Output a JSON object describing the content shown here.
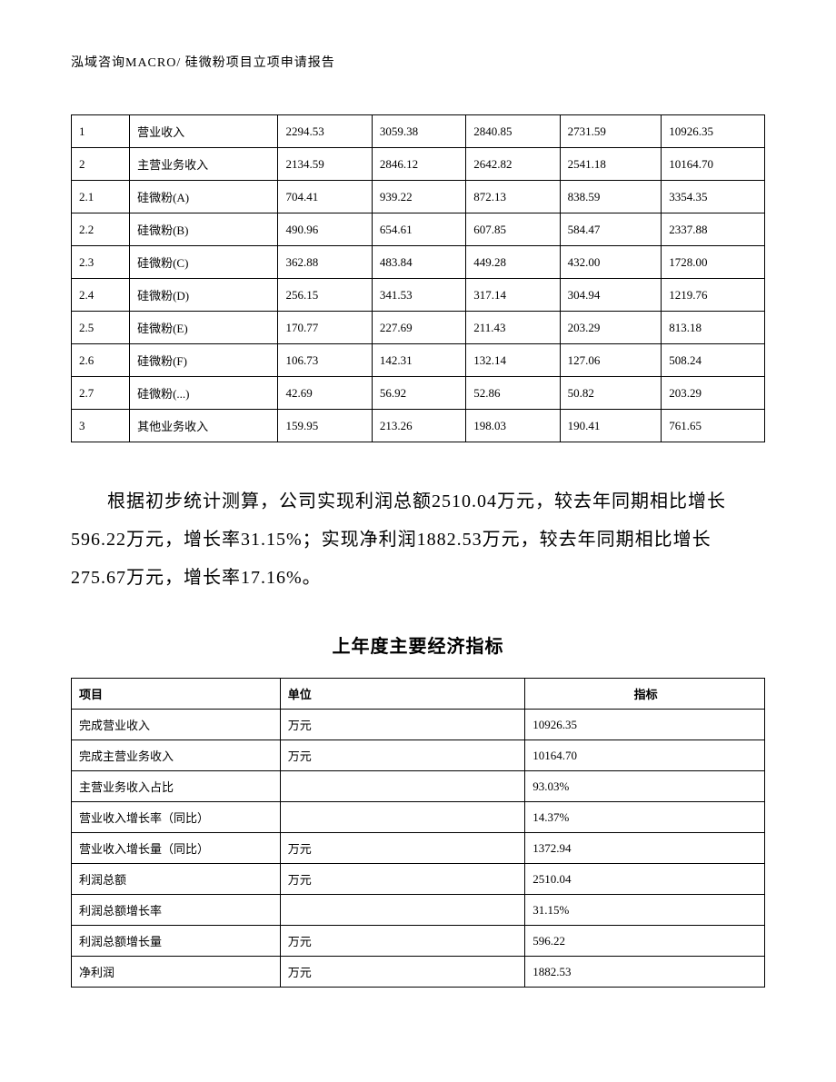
{
  "header": "泓域咨询MACRO/    硅微粉项目立项申请报告",
  "table1": {
    "rows": [
      [
        "1",
        "营业收入",
        "2294.53",
        "3059.38",
        "2840.85",
        "2731.59",
        "10926.35"
      ],
      [
        "2",
        "主营业务收入",
        "2134.59",
        "2846.12",
        "2642.82",
        "2541.18",
        "10164.70"
      ],
      [
        "2.1",
        "硅微粉(A)",
        "704.41",
        "939.22",
        "872.13",
        "838.59",
        "3354.35"
      ],
      [
        "2.2",
        "硅微粉(B)",
        "490.96",
        "654.61",
        "607.85",
        "584.47",
        "2337.88"
      ],
      [
        "2.3",
        "硅微粉(C)",
        "362.88",
        "483.84",
        "449.28",
        "432.00",
        "1728.00"
      ],
      [
        "2.4",
        "硅微粉(D)",
        "256.15",
        "341.53",
        "317.14",
        "304.94",
        "1219.76"
      ],
      [
        "2.5",
        "硅微粉(E)",
        "170.77",
        "227.69",
        "211.43",
        "203.29",
        "813.18"
      ],
      [
        "2.6",
        "硅微粉(F)",
        "106.73",
        "142.31",
        "132.14",
        "127.06",
        "508.24"
      ],
      [
        "2.7",
        "硅微粉(...)",
        "42.69",
        "56.92",
        "52.86",
        "50.82",
        "203.29"
      ],
      [
        "3",
        "其他业务收入",
        "159.95",
        "213.26",
        "198.03",
        "190.41",
        "761.65"
      ]
    ]
  },
  "paragraph": "根据初步统计测算，公司实现利润总额2510.04万元，较去年同期相比增长596.22万元，增长率31.15%；实现净利润1882.53万元，较去年同期相比增长275.67万元，增长率17.16%。",
  "section_title": "上年度主要经济指标",
  "table2": {
    "headers": [
      "项目",
      "单位",
      "指标"
    ],
    "rows": [
      [
        "完成营业收入",
        "万元",
        "10926.35"
      ],
      [
        "完成主营业务收入",
        "万元",
        "10164.70"
      ],
      [
        "主营业务收入占比",
        "",
        "93.03%"
      ],
      [
        "营业收入增长率（同比）",
        "",
        "14.37%"
      ],
      [
        "营业收入增长量（同比）",
        "万元",
        "1372.94"
      ],
      [
        "利润总额",
        "万元",
        "2510.04"
      ],
      [
        "利润总额增长率",
        "",
        "31.15%"
      ],
      [
        "利润总额增长量",
        "万元",
        "596.22"
      ],
      [
        "净利润",
        "万元",
        "1882.53"
      ]
    ]
  }
}
